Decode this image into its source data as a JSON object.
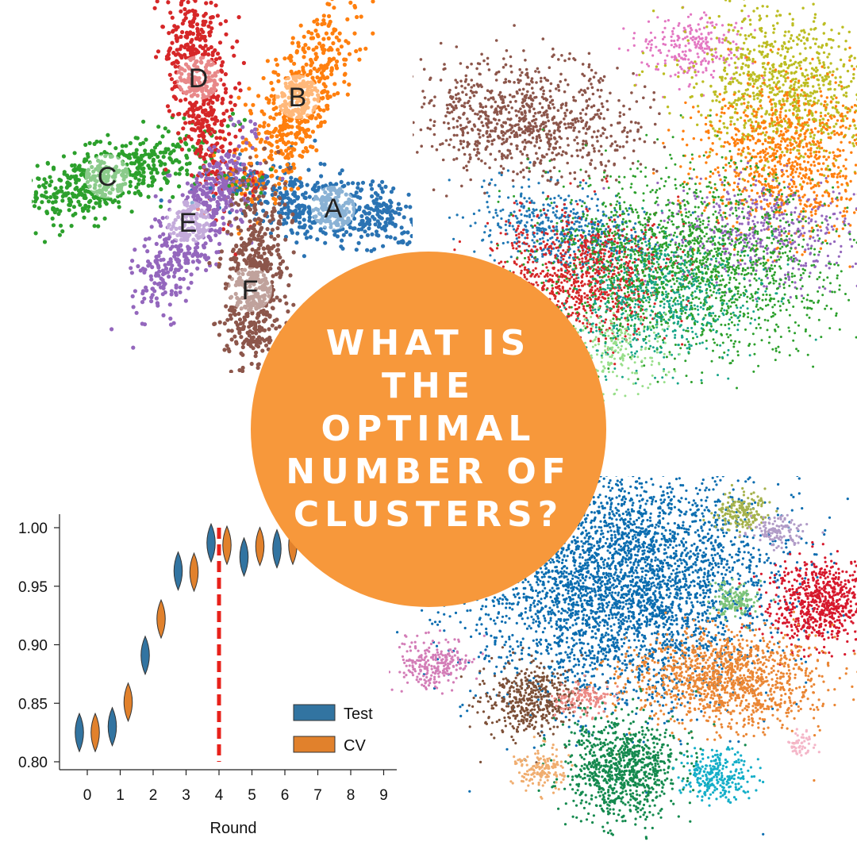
{
  "headline": "WHAT IS THE\nOPTIMAL\nNUMBER OF\nCLUSTERS?",
  "colors": {
    "badge": "#f7983b",
    "test": "#3274a1",
    "cv": "#e1812c",
    "threshold": "#e8221b"
  },
  "flower_labels": [
    "A",
    "B",
    "C",
    "D",
    "E",
    "F"
  ],
  "chart_data": {
    "type": "violin",
    "xlabel": "Round",
    "ylabel": "",
    "categories": [
      "0",
      "1",
      "2",
      "3",
      "4",
      "5",
      "6",
      "7",
      "8",
      "9"
    ],
    "ylim": [
      0.795,
      1.01
    ],
    "yticks": [
      "1.00",
      "0.95",
      "0.90",
      "0.85",
      "0.80"
    ],
    "threshold_round": 4,
    "series": [
      {
        "name": "Test",
        "values": [
          0.825,
          0.83,
          0.891,
          0.963,
          0.987,
          0.975,
          0.982,
          null,
          null,
          null
        ]
      },
      {
        "name": "CV",
        "values": [
          0.825,
          0.851,
          0.922,
          0.962,
          0.985,
          0.984,
          0.985,
          null,
          null,
          null
        ]
      }
    ],
    "legend_position": "lower-right",
    "grid": false
  }
}
